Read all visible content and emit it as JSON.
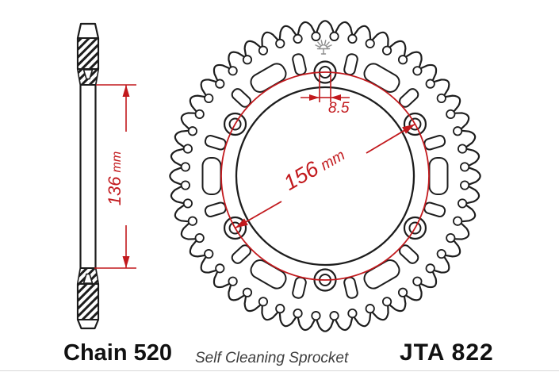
{
  "figure": {
    "subject": "rear-sprocket-technical-drawing",
    "teeth_count": 48,
    "bolt_hole_count": 6
  },
  "dimensions": {
    "overall": {
      "value": "136",
      "unit": "mm"
    },
    "bolt_circle": {
      "value": "156",
      "unit": "mm"
    },
    "bolt_hole": {
      "value": "8.5"
    }
  },
  "footer": {
    "chain": "Chain 520",
    "description": "Self Cleaning Sprocket",
    "part_number": "JTA 822"
  },
  "colors": {
    "line": "#1d1d1d",
    "dimension_red": "#c2191d",
    "mark_gray": "#8d8d8d",
    "footer_text": "#111111",
    "subtitle_text": "#3c3c3c"
  }
}
